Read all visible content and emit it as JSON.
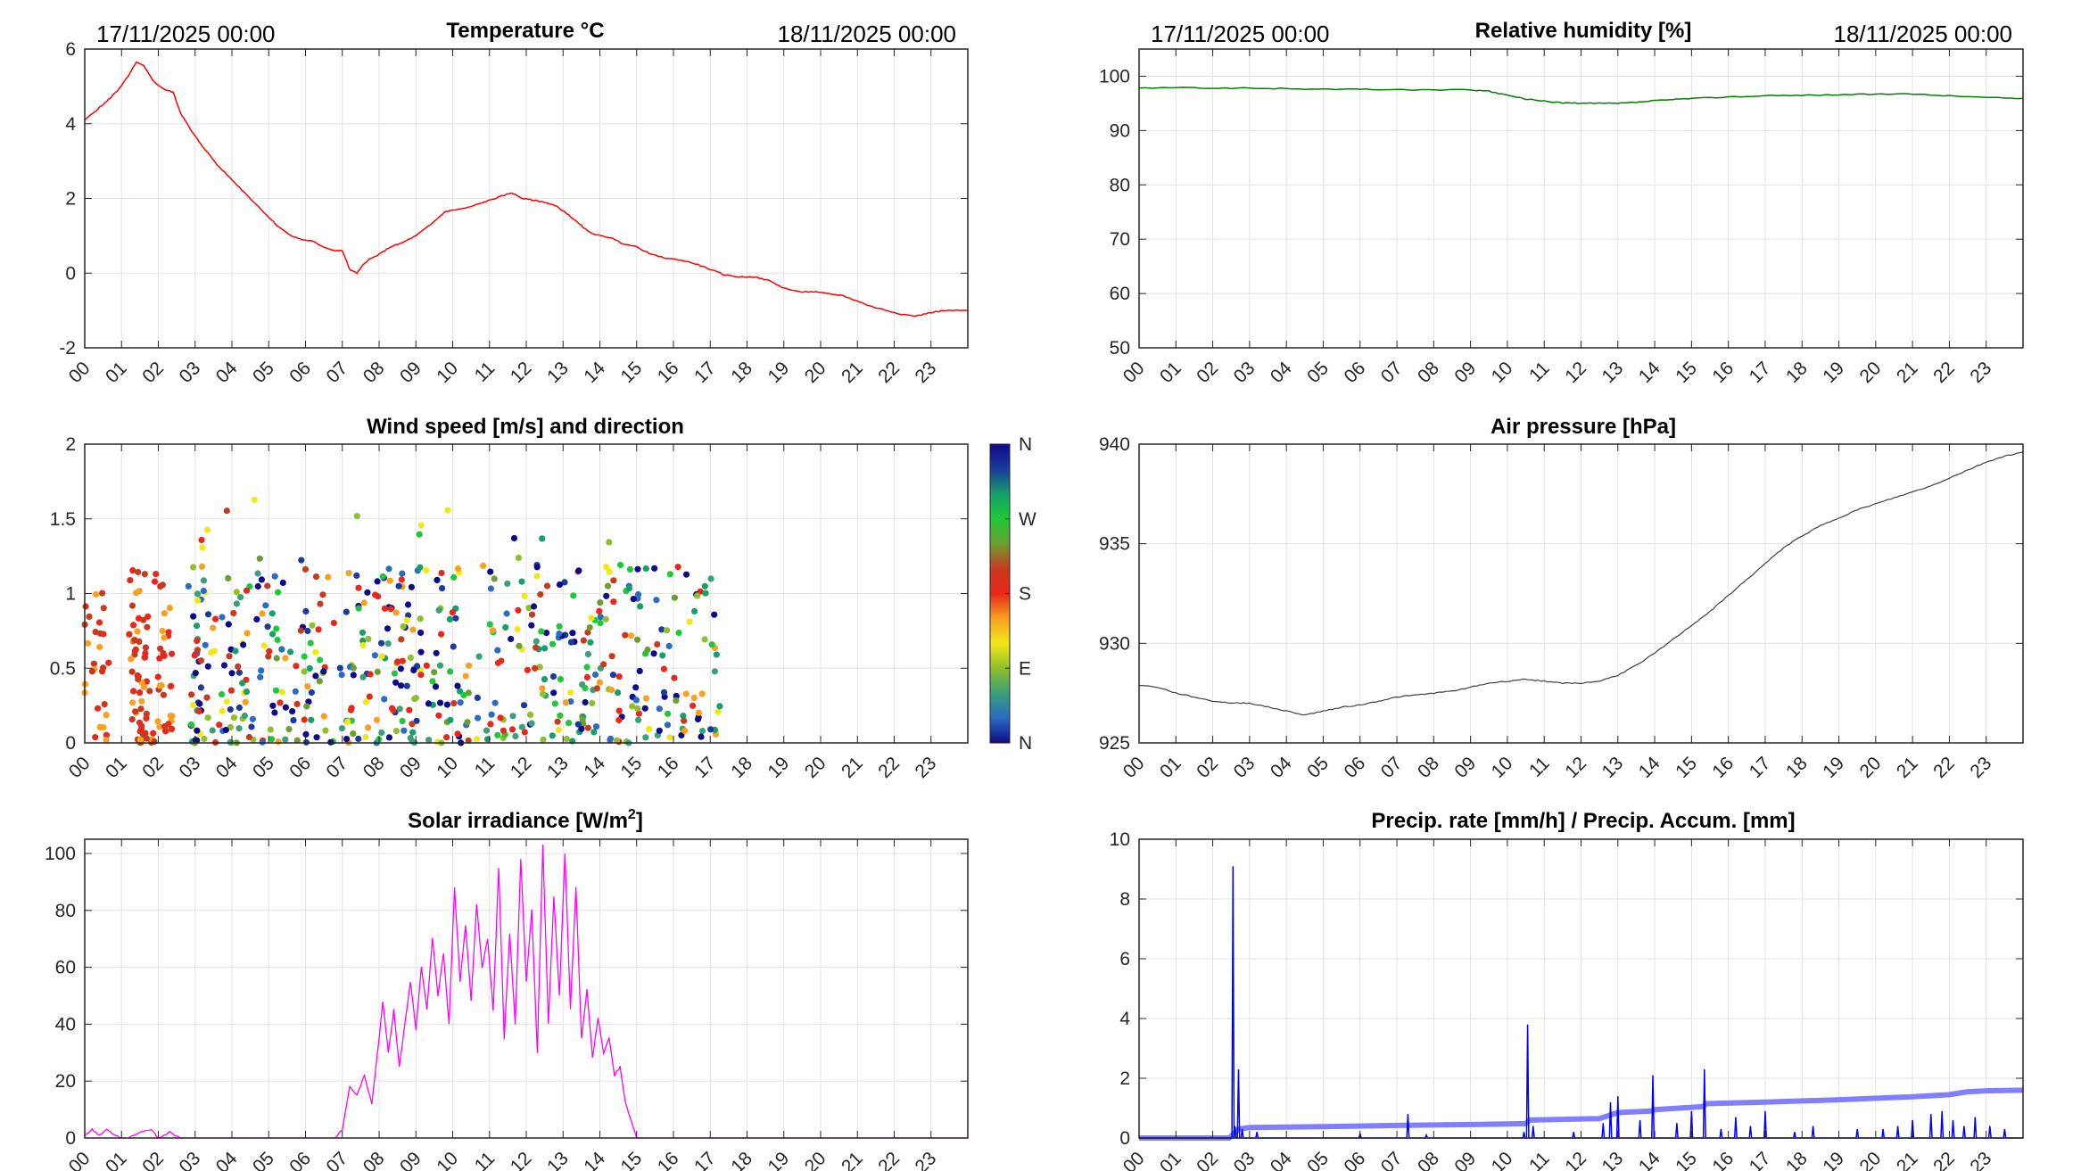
{
  "chart_data": [
    {
      "id": "temperature",
      "type": "line",
      "title": "Temperature °C",
      "date_left": "17/11/2025 00:00",
      "date_right": "18/11/2025 00:00",
      "x_tick_labels": [
        "00",
        "01",
        "02",
        "03",
        "04",
        "05",
        "06",
        "07",
        "08",
        "09",
        "10",
        "11",
        "12",
        "13",
        "14",
        "15",
        "16",
        "17",
        "18",
        "19",
        "20",
        "21",
        "22",
        "23"
      ],
      "xlim": [
        0,
        24
      ],
      "ylim": [
        -2,
        6
      ],
      "y_ticks": [
        -2,
        0,
        2,
        4,
        6
      ],
      "grid": true,
      "color": "#ff0000",
      "x": [
        0,
        0.3,
        0.6,
        0.9,
        1.2,
        1.4,
        1.6,
        1.9,
        2.2,
        2.4,
        2.6,
        2.9,
        3.2,
        3.6,
        4.0,
        4.4,
        4.8,
        5.2,
        5.6,
        5.9,
        6.2,
        6.5,
        6.8,
        7.0,
        7.2,
        7.4,
        7.55,
        7.7,
        8.0,
        8.3,
        8.6,
        9.0,
        9.4,
        9.8,
        10.1,
        10.4,
        10.7,
        11.0,
        11.3,
        11.6,
        11.9,
        12.2,
        12.5,
        12.8,
        13.1,
        13.4,
        13.7,
        14.0,
        14.3,
        14.6,
        15.0,
        15.4,
        15.8,
        16.2,
        16.6,
        17.0,
        17.4,
        17.8,
        18.2,
        18.6,
        19.0,
        19.4,
        19.8,
        20.2,
        20.6,
        21.0,
        21.4,
        21.8,
        22.2,
        22.6,
        23.0,
        23.4,
        24.0
      ],
      "y": [
        4.1,
        4.35,
        4.6,
        4.9,
        5.3,
        5.65,
        5.55,
        5.1,
        4.9,
        4.85,
        4.3,
        3.8,
        3.4,
        2.9,
        2.5,
        2.1,
        1.7,
        1.3,
        1.0,
        0.9,
        0.85,
        0.7,
        0.6,
        0.6,
        0.1,
        0.0,
        0.2,
        0.35,
        0.5,
        0.7,
        0.8,
        1.0,
        1.3,
        1.65,
        1.7,
        1.75,
        1.85,
        1.95,
        2.05,
        2.15,
        2.0,
        1.95,
        1.9,
        1.8,
        1.6,
        1.35,
        1.1,
        1.0,
        0.95,
        0.8,
        0.7,
        0.5,
        0.4,
        0.35,
        0.25,
        0.1,
        -0.05,
        -0.1,
        -0.1,
        -0.2,
        -0.4,
        -0.5,
        -0.5,
        -0.55,
        -0.6,
        -0.75,
        -0.9,
        -1.0,
        -1.1,
        -1.15,
        -1.05,
        -1.0,
        -1.0
      ]
    },
    {
      "id": "humidity",
      "type": "line",
      "title": "Relative humidity [%]",
      "date_left": "17/11/2025 00:00",
      "date_right": "18/11/2025 00:00",
      "x_tick_labels": [
        "00",
        "01",
        "02",
        "03",
        "04",
        "05",
        "06",
        "07",
        "08",
        "09",
        "10",
        "11",
        "12",
        "13",
        "14",
        "15",
        "16",
        "17",
        "18",
        "19",
        "20",
        "21",
        "22",
        "23"
      ],
      "xlim": [
        0,
        24
      ],
      "ylim": [
        50,
        105
      ],
      "y_ticks": [
        50,
        60,
        70,
        80,
        90,
        100
      ],
      "grid": true,
      "color": "#008000",
      "x": [
        0,
        1,
        2,
        3,
        4,
        5,
        6,
        7,
        8,
        9,
        9.5,
        10,
        10.5,
        11,
        11.5,
        12,
        12.5,
        13,
        13.5,
        14,
        14.5,
        15,
        16,
        17,
        18,
        19,
        20,
        21,
        22,
        23,
        24
      ],
      "y": [
        97.8,
        97.9,
        97.8,
        97.8,
        97.7,
        97.6,
        97.6,
        97.5,
        97.5,
        97.5,
        97.2,
        96.5,
        95.8,
        95.4,
        95.1,
        95.0,
        95.0,
        95.0,
        95.2,
        95.5,
        95.7,
        95.9,
        96.2,
        96.4,
        96.5,
        96.6,
        96.7,
        96.7,
        96.4,
        96.1,
        95.9
      ]
    },
    {
      "id": "wind",
      "type": "scatter",
      "title": "Wind speed [m/s] and direction",
      "x_tick_labels": [
        "00",
        "01",
        "02",
        "03",
        "04",
        "05",
        "06",
        "07",
        "08",
        "09",
        "10",
        "11",
        "12",
        "13",
        "14",
        "15",
        "16",
        "17",
        "18",
        "19",
        "20",
        "21",
        "22",
        "23"
      ],
      "xlim": [
        0,
        24
      ],
      "ylim": [
        0,
        2
      ],
      "y_ticks": [
        0,
        0.5,
        1,
        1.5,
        2
      ],
      "y_tick_labels": [
        "0",
        "0.5",
        "1",
        "1.5",
        "2"
      ],
      "grid": true,
      "colorbar_labels": [
        "N",
        "E",
        "S",
        "W",
        "N"
      ],
      "colorbar_colors": [
        "#0d0a8a",
        "#2a6bc4",
        "#3a9f7a",
        "#8fbf2a",
        "#f2e818",
        "#f8a020",
        "#e8281a",
        "#c83a1f",
        "#6c9f32",
        "#1fc838",
        "#14a068",
        "#1a3a9c",
        "#0d0a8a"
      ],
      "data_end_hour": 17.3,
      "point_count": 700,
      "seed": 7
    },
    {
      "id": "pressure",
      "type": "line",
      "title": "Air pressure [hPa]",
      "x_tick_labels": [
        "00",
        "01",
        "02",
        "03",
        "04",
        "05",
        "06",
        "07",
        "08",
        "09",
        "10",
        "11",
        "12",
        "13",
        "14",
        "15",
        "16",
        "17",
        "18",
        "19",
        "20",
        "21",
        "22",
        "23"
      ],
      "xlim": [
        0,
        24
      ],
      "ylim": [
        925,
        940
      ],
      "y_ticks": [
        925,
        930,
        935,
        940
      ],
      "grid": true,
      "color": "#404040",
      "x": [
        0,
        0.5,
        1,
        1.5,
        2,
        2.5,
        3,
        3.5,
        4,
        4.5,
        5,
        5.5,
        6,
        6.5,
        7,
        7.5,
        8,
        8.5,
        9,
        9.5,
        10,
        10.5,
        11,
        11.5,
        12,
        12.5,
        13,
        13.5,
        14,
        14.5,
        15,
        15.5,
        16,
        16.5,
        17,
        17.5,
        18,
        18.5,
        19,
        19.5,
        20,
        20.5,
        21,
        21.5,
        22,
        22.5,
        23,
        23.5,
        24
      ],
      "y": [
        927.9,
        927.8,
        927.5,
        927.3,
        927.1,
        927.0,
        927.0,
        926.8,
        926.6,
        926.4,
        926.6,
        926.8,
        926.9,
        927.1,
        927.3,
        927.4,
        927.5,
        927.6,
        927.8,
        928.0,
        928.1,
        928.2,
        928.1,
        928.0,
        928.0,
        928.1,
        928.4,
        928.9,
        929.5,
        930.2,
        930.9,
        931.6,
        932.4,
        933.2,
        934.0,
        934.8,
        935.4,
        935.9,
        936.3,
        936.7,
        937.0,
        937.3,
        937.6,
        937.9,
        938.3,
        938.7,
        939.1,
        939.4,
        939.6
      ]
    },
    {
      "id": "solar",
      "type": "line",
      "title": "Solar irradiance [W/m",
      "title_sup": "2",
      "title_end": "]",
      "x_tick_labels": [
        "00",
        "01",
        "02",
        "03",
        "04",
        "05",
        "06",
        "07",
        "08",
        "09",
        "10",
        "11",
        "12",
        "13",
        "14",
        "15",
        "16",
        "17",
        "18",
        "19",
        "20",
        "21",
        "22",
        "23"
      ],
      "xlim": [
        0,
        24
      ],
      "ylim": [
        0,
        105
      ],
      "y_ticks": [
        0,
        20,
        40,
        60,
        80,
        100
      ],
      "grid": true,
      "color": "#ff00ff",
      "x": [
        0,
        0.2,
        0.4,
        0.6,
        0.8,
        1.0,
        1.2,
        1.5,
        1.8,
        2.0,
        2.3,
        2.6,
        3.0,
        4.0,
        5.0,
        6.0,
        6.8,
        7.0,
        7.2,
        7.4,
        7.6,
        7.8,
        8.0,
        8.1,
        8.25,
        8.4,
        8.55,
        8.7,
        8.85,
        9.0,
        9.15,
        9.3,
        9.45,
        9.6,
        9.75,
        9.9,
        10.05,
        10.2,
        10.35,
        10.5,
        10.65,
        10.8,
        10.95,
        11.1,
        11.25,
        11.4,
        11.55,
        11.7,
        11.85,
        12.0,
        12.15,
        12.3,
        12.45,
        12.6,
        12.75,
        12.9,
        13.05,
        13.2,
        13.35,
        13.5,
        13.65,
        13.8,
        13.95,
        14.1,
        14.25,
        14.4,
        14.55,
        14.7,
        14.85,
        15.0,
        16.0,
        18.0,
        20.0,
        22.0,
        24.0
      ],
      "y": [
        1,
        3,
        1,
        3,
        1,
        0,
        0,
        2,
        3,
        0,
        2,
        0,
        0,
        0,
        0,
        0,
        0,
        3,
        18,
        15,
        22,
        12,
        35,
        48,
        30,
        45,
        25,
        40,
        55,
        38,
        60,
        45,
        70,
        50,
        65,
        40,
        88,
        55,
        75,
        48,
        82,
        60,
        70,
        45,
        95,
        35,
        72,
        40,
        98,
        55,
        80,
        30,
        103,
        40,
        85,
        50,
        100,
        45,
        88,
        35,
        52,
        28,
        42,
        30,
        35,
        22,
        25,
        12,
        6,
        0,
        0,
        0,
        0,
        0,
        0
      ]
    },
    {
      "id": "precip",
      "type": "line",
      "title": "Precip. rate [mm/h] / Precip. Accum. [mm]",
      "x_tick_labels": [
        "00",
        "01",
        "02",
        "03",
        "04",
        "05",
        "06",
        "07",
        "08",
        "09",
        "10",
        "11",
        "12",
        "13",
        "14",
        "15",
        "16",
        "17",
        "18",
        "19",
        "20",
        "21",
        "22",
        "23"
      ],
      "xlim": [
        0,
        24
      ],
      "ylim": [
        0,
        10
      ],
      "y_ticks": [
        0,
        2,
        4,
        6,
        8,
        10
      ],
      "grid": true,
      "series": [
        {
          "color": "#0000ff",
          "peaks": [
            [
              2.45,
              0
            ],
            [
              2.55,
              9.1
            ],
            [
              2.6,
              0.4
            ],
            [
              2.7,
              2.3
            ],
            [
              2.8,
              0.3
            ],
            [
              3.2,
              0.2
            ],
            [
              6.0,
              0.15
            ],
            [
              7.3,
              0.8
            ],
            [
              7.8,
              0.1
            ],
            [
              10.45,
              0.2
            ],
            [
              10.55,
              3.8
            ],
            [
              10.7,
              0.4
            ],
            [
              11.8,
              0.2
            ],
            [
              12.6,
              0.5
            ],
            [
              12.8,
              1.2
            ],
            [
              13.0,
              1.4
            ],
            [
              13.6,
              0.6
            ],
            [
              13.95,
              2.1
            ],
            [
              14.6,
              0.5
            ],
            [
              15.0,
              0.9
            ],
            [
              15.35,
              2.3
            ],
            [
              15.8,
              0.3
            ],
            [
              16.2,
              0.7
            ],
            [
              16.6,
              0.4
            ],
            [
              17.0,
              0.9
            ],
            [
              17.8,
              0.2
            ],
            [
              18.3,
              0.4
            ],
            [
              19.5,
              0.3
            ],
            [
              20.2,
              0.3
            ],
            [
              20.6,
              0.4
            ],
            [
              21.0,
              0.6
            ],
            [
              21.5,
              0.8
            ],
            [
              21.8,
              0.9
            ],
            [
              22.1,
              0.6
            ],
            [
              22.4,
              0.4
            ],
            [
              22.7,
              0.7
            ],
            [
              23.1,
              0.4
            ],
            [
              23.5,
              0.3
            ]
          ]
        },
        {
          "color": "#8080ff",
          "x": [
            0,
            2.45,
            2.7,
            3.0,
            5.0,
            7.0,
            9.0,
            10.5,
            10.6,
            12.5,
            13.0,
            13.9,
            14.0,
            15.3,
            15.4,
            17.0,
            19.0,
            21.0,
            22.0,
            22.5,
            23.0,
            24.0
          ],
          "y": [
            0,
            0,
            0.3,
            0.35,
            0.38,
            0.42,
            0.45,
            0.48,
            0.6,
            0.65,
            0.85,
            0.9,
            0.95,
            1.05,
            1.15,
            1.2,
            1.28,
            1.38,
            1.45,
            1.55,
            1.58,
            1.6
          ]
        }
      ]
    }
  ]
}
